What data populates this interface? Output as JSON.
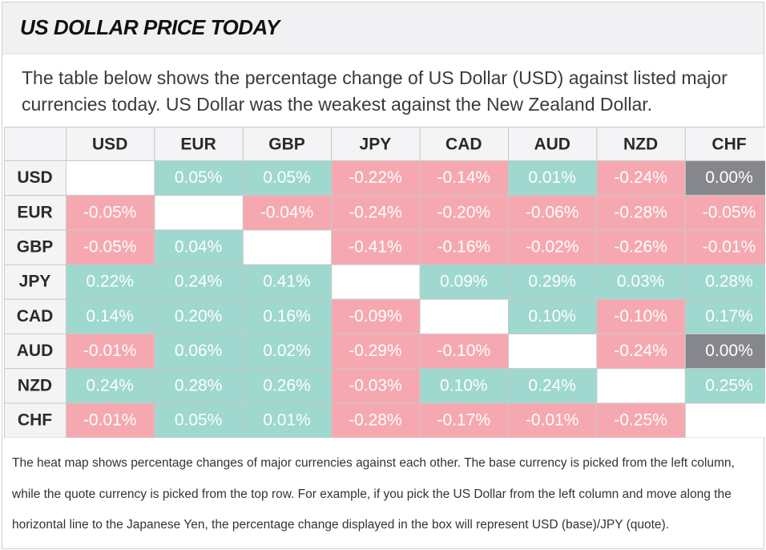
{
  "title": "US DOLLAR PRICE TODAY",
  "intro": "The table below shows the percentage change of US Dollar (USD) against listed major currencies today. US Dollar was the weakest against the New Zealand Dollar.",
  "footnote": "The heat map shows percentage changes of major currencies against each other. The base currency is picked from the left column, while the quote currency is picked from the top row. For example, if you pick the US Dollar from the left column and move along the horizontal line to the Japanese Yen, the percentage change displayed in the box will represent USD (base)/JPY (quote).",
  "colors": {
    "positive": "#9ed8ce",
    "negative": "#f6a8b0",
    "neutral": "#86878d",
    "empty": "#ffffff",
    "header_bg": "#f4f4f6",
    "grid_line": "#c9c9c9"
  },
  "chart_data": {
    "type": "heatmap",
    "columns": [
      "USD",
      "EUR",
      "GBP",
      "JPY",
      "CAD",
      "AUD",
      "NZD",
      "CHF"
    ],
    "rows": [
      "USD",
      "EUR",
      "GBP",
      "JPY",
      "CAD",
      "AUD",
      "NZD",
      "CHF"
    ],
    "values": [
      [
        null,
        0.05,
        0.05,
        -0.22,
        -0.14,
        0.01,
        -0.24,
        0.0
      ],
      [
        -0.05,
        null,
        -0.04,
        -0.24,
        -0.2,
        -0.06,
        -0.28,
        -0.05
      ],
      [
        -0.05,
        0.04,
        null,
        -0.41,
        -0.16,
        -0.02,
        -0.26,
        -0.01
      ],
      [
        0.22,
        0.24,
        0.41,
        null,
        0.09,
        0.29,
        0.03,
        0.28
      ],
      [
        0.14,
        0.2,
        0.16,
        -0.09,
        null,
        0.1,
        -0.1,
        0.17
      ],
      [
        -0.01,
        0.06,
        0.02,
        -0.29,
        -0.1,
        null,
        -0.24,
        0.0
      ],
      [
        0.24,
        0.28,
        0.26,
        -0.03,
        0.1,
        0.24,
        null,
        0.25
      ],
      [
        -0.01,
        0.05,
        0.01,
        -0.28,
        -0.17,
        -0.01,
        -0.25,
        null
      ]
    ],
    "unit": "%"
  }
}
